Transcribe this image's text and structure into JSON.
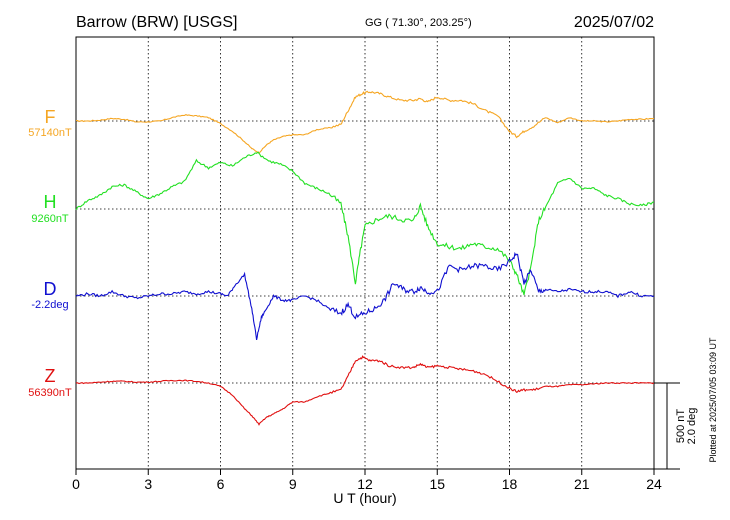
{
  "header": {
    "station": "Barrow (BRW)  [USGS]",
    "coords": "GG ( 71.30°, 203.25°)",
    "date": "2025/07/02"
  },
  "footer": {
    "plotted_at": "Plotted at 2025/07/05 03:09 UT"
  },
  "scale": {
    "nt": "500 nT",
    "deg": "2.0 deg"
  },
  "colors": {
    "F": "#f5a623",
    "H": "#22e022",
    "D": "#1010d0",
    "Z": "#e01010"
  },
  "chart_data": {
    "type": "line",
    "xlabel": "U T (hour)",
    "xlim": [
      0,
      24
    ],
    "xticks": [
      "0",
      "3",
      "6",
      "9",
      "12",
      "15",
      "18",
      "21",
      "24"
    ],
    "scale_units_per_division": "500 nT / 2.0 deg",
    "series": [
      {
        "name": "F",
        "baseline_label": "57140nT",
        "color": "#f5a623",
        "unit": "nT",
        "baseline": 57140,
        "x": [
          0,
          0.5,
          1,
          1.5,
          2,
          2.5,
          3,
          3.5,
          4,
          4.5,
          5,
          5.5,
          6,
          6.5,
          7,
          7.3,
          7.6,
          7.9,
          8.2,
          8.6,
          9,
          9.5,
          10,
          10.5,
          11,
          11.3,
          11.6,
          11.9,
          12.2,
          12.6,
          13,
          13.5,
          14,
          14.3,
          14.6,
          15,
          15.5,
          16,
          16.5,
          17,
          17.5,
          18,
          18.3,
          18.6,
          19,
          19.5,
          20,
          20.5,
          21,
          21.5,
          22,
          22.5,
          23,
          23.5,
          24
        ],
        "y": [
          0,
          0,
          5,
          15,
          10,
          -5,
          -5,
          0,
          20,
          35,
          30,
          20,
          -15,
          -60,
          -120,
          -160,
          -185,
          -140,
          -110,
          -90,
          -80,
          -80,
          -50,
          -40,
          -20,
          60,
          140,
          160,
          170,
          160,
          140,
          120,
          120,
          130,
          110,
          140,
          120,
          120,
          100,
          60,
          30,
          -60,
          -90,
          -60,
          -30,
          20,
          -10,
          20,
          0,
          0,
          -5,
          0,
          10,
          10,
          15
        ]
      },
      {
        "name": "H",
        "baseline_label": "9260nT",
        "color": "#22e022",
        "unit": "nT",
        "baseline": 9260,
        "x": [
          0,
          0.5,
          1,
          1.5,
          2,
          2.5,
          3,
          3.5,
          4,
          4.5,
          5,
          5.5,
          6,
          6.5,
          7,
          7.5,
          8,
          8.5,
          9,
          9.5,
          10,
          10.5,
          11,
          11.3,
          11.6,
          11.8,
          12,
          12.5,
          13,
          13.5,
          14,
          14.3,
          14.6,
          15,
          15.5,
          16,
          16.5,
          17,
          17.5,
          18,
          18.3,
          18.6,
          18.9,
          19.2,
          19.5,
          20,
          20.5,
          21,
          21.5,
          22,
          22.5,
          23,
          23.5,
          24
        ],
        "y": [
          0,
          50,
          80,
          130,
          140,
          100,
          60,
          90,
          130,
          160,
          280,
          240,
          270,
          250,
          300,
          330,
          280,
          260,
          220,
          150,
          120,
          90,
          30,
          -160,
          -430,
          -250,
          -100,
          -60,
          -40,
          -60,
          -70,
          20,
          -100,
          -200,
          -220,
          -230,
          -200,
          -220,
          -230,
          -300,
          -380,
          -500,
          -330,
          -70,
          10,
          150,
          180,
          120,
          120,
          80,
          60,
          30,
          20,
          40
        ]
      },
      {
        "name": "D",
        "baseline_label": "-2.2deg",
        "color": "#1010d0",
        "unit": "deg",
        "baseline": -2.2,
        "x": [
          0,
          0.5,
          1,
          1.5,
          2,
          2.5,
          3,
          3.5,
          4,
          4.5,
          5,
          5.5,
          6,
          6.3,
          6.6,
          7,
          7.3,
          7.5,
          7.7,
          7.9,
          8.2,
          8.6,
          9,
          9.5,
          10,
          10.5,
          11,
          11.3,
          11.6,
          12,
          12.4,
          12.8,
          13.2,
          13.6,
          14,
          14.3,
          14.6,
          15,
          15.5,
          16,
          16.5,
          17,
          17.5,
          18,
          18.3,
          18.6,
          18.9,
          19.2,
          19.5,
          20,
          20.5,
          21,
          21.5,
          22,
          22.5,
          23,
          23.5,
          24
        ],
        "y": [
          0,
          0.05,
          0,
          0.1,
          0,
          -0.05,
          0,
          0.05,
          0.05,
          0.1,
          0.05,
          0.1,
          0.05,
          0,
          0.25,
          0.5,
          -0.3,
          -1.0,
          -0.5,
          -0.3,
          0,
          -0.1,
          -0.1,
          0,
          -0.1,
          -0.3,
          -0.4,
          -0.2,
          -0.5,
          -0.4,
          -0.3,
          -0.1,
          0.3,
          0.15,
          0.1,
          0.2,
          0.1,
          0.1,
          0.7,
          0.6,
          0.7,
          0.7,
          0.6,
          0.8,
          1.0,
          0.3,
          0.6,
          0.1,
          0.15,
          0.1,
          0.15,
          0.1,
          0.1,
          0.1,
          0,
          0.1,
          0,
          0
        ]
      },
      {
        "name": "Z",
        "baseline_label": "56390nT",
        "color": "#e01010",
        "unit": "nT",
        "baseline": 56390,
        "x": [
          0,
          0.5,
          1,
          1.5,
          2,
          2.5,
          3,
          3.5,
          4,
          4.5,
          5,
          5.5,
          6,
          6.5,
          7,
          7.3,
          7.6,
          7.9,
          8.2,
          8.6,
          9,
          9.5,
          10,
          10.5,
          11,
          11.3,
          11.6,
          11.9,
          12.2,
          12.6,
          13,
          13.5,
          14,
          14.3,
          14.6,
          15,
          15.5,
          16,
          16.5,
          17,
          17.5,
          18,
          18.3,
          18.6,
          19,
          19.5,
          20,
          20.5,
          21,
          21.5,
          22,
          22.5,
          23,
          23.5,
          24
        ],
        "y": [
          0,
          0,
          5,
          10,
          10,
          5,
          5,
          10,
          15,
          15,
          10,
          0,
          -20,
          -70,
          -150,
          -190,
          -240,
          -200,
          -180,
          -150,
          -110,
          -110,
          -80,
          -60,
          -40,
          40,
          130,
          150,
          130,
          130,
          100,
          90,
          90,
          110,
          90,
          100,
          90,
          80,
          70,
          50,
          10,
          -30,
          -50,
          -40,
          -40,
          -20,
          -20,
          -10,
          -10,
          -5,
          0,
          0,
          0,
          0,
          0
        ]
      }
    ]
  }
}
